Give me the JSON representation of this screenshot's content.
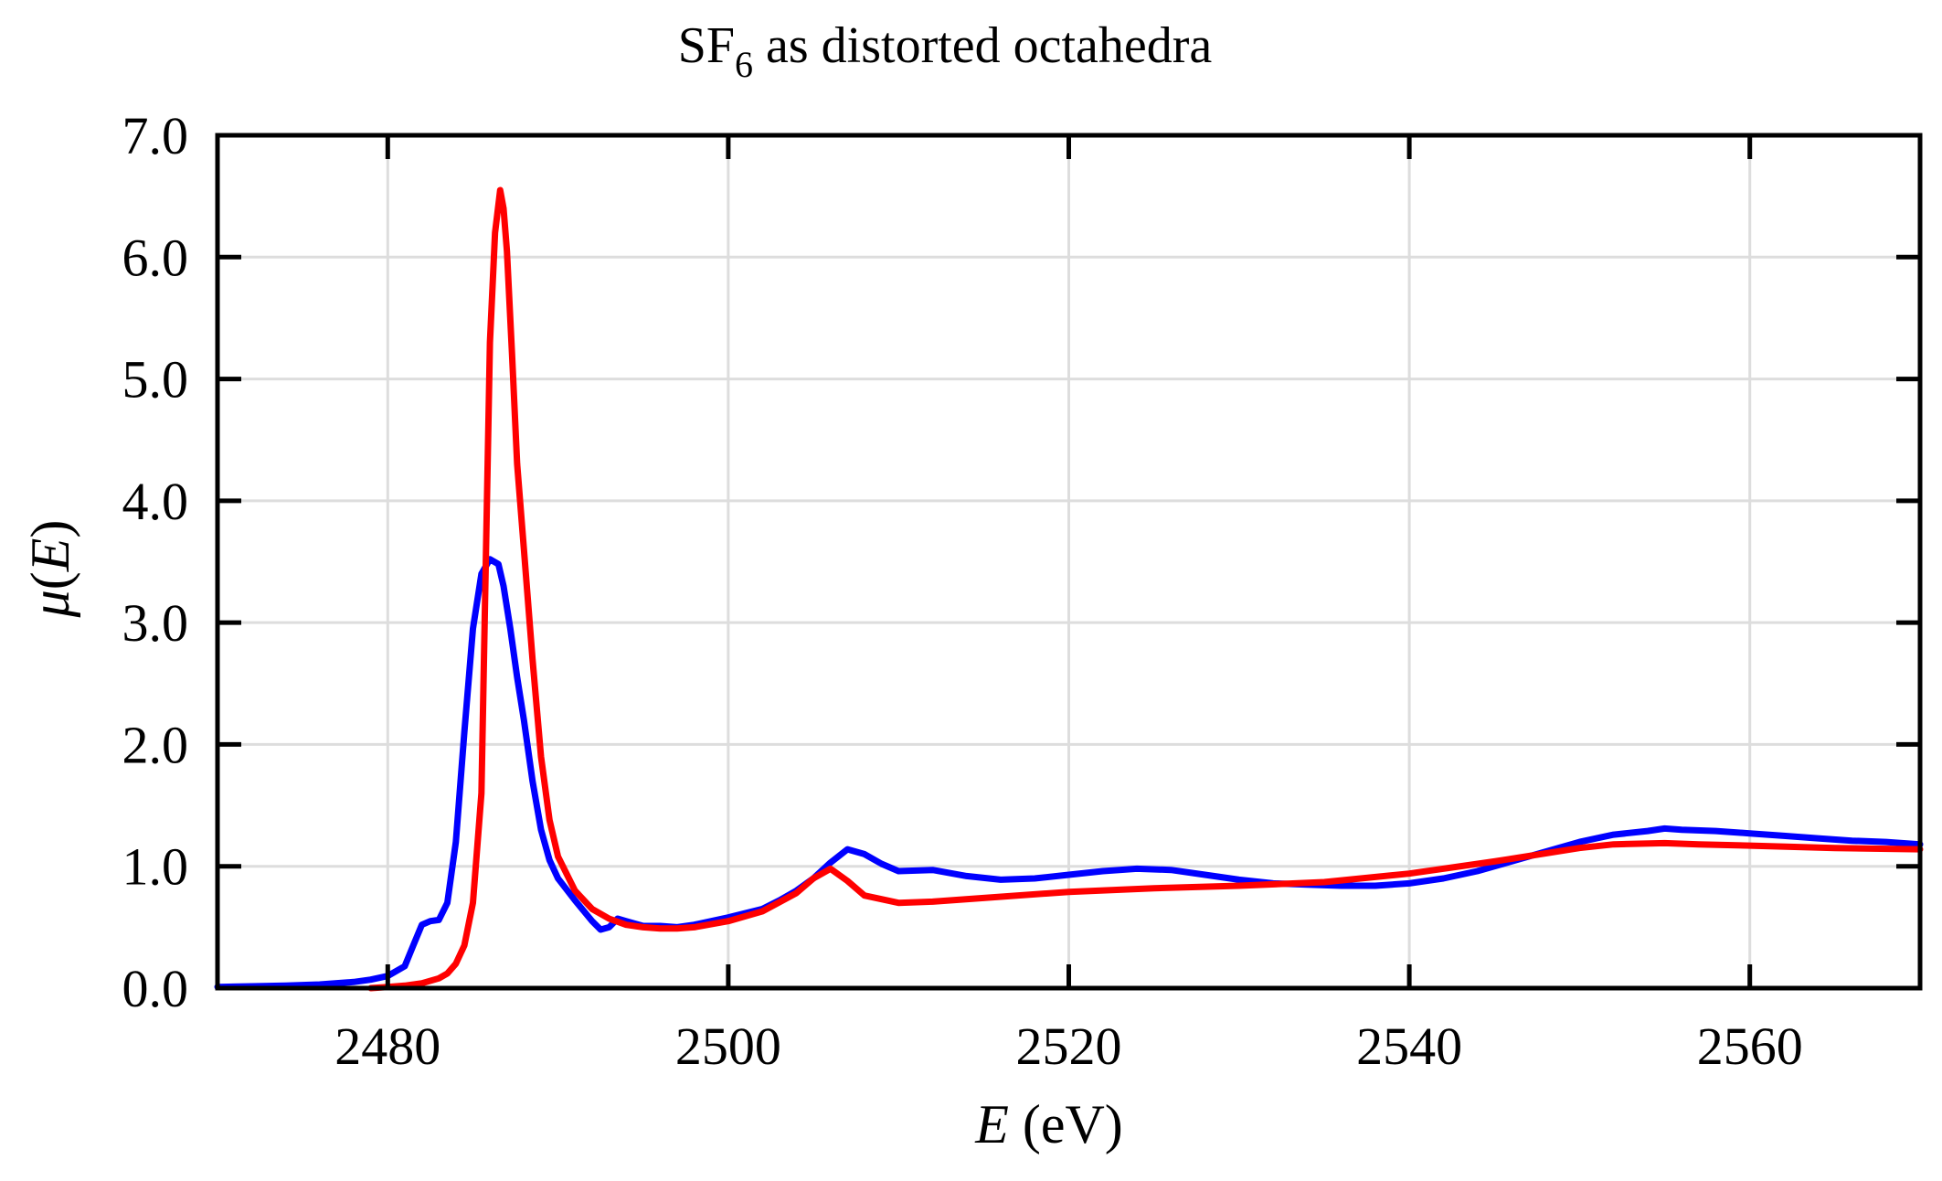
{
  "chart_data": {
    "type": "line",
    "title": {
      "main": "SF",
      "subscript": "6",
      "rest": " as distorted octahedra"
    },
    "xlabel": {
      "var": "E",
      "unit": " (eV)"
    },
    "ylabel": {
      "var_greek": "μ",
      "open": "(",
      "var": "E",
      "close": ")"
    },
    "xlim": [
      2470,
      2570
    ],
    "ylim": [
      0,
      7
    ],
    "xticks": [
      2480,
      2500,
      2520,
      2540,
      2560
    ],
    "yticks": [
      0,
      1,
      2,
      3,
      4,
      5,
      6,
      7
    ],
    "xtick_labels": [
      "2480",
      "2500",
      "2520",
      "2540",
      "2560"
    ],
    "ytick_labels": [
      "0.0",
      "1.0",
      "2.0",
      "3.0",
      "4.0",
      "5.0",
      "6.0",
      "7.0"
    ],
    "grid": true,
    "legend": "none",
    "series": [
      {
        "color": "#0000ff",
        "x": [
          2470,
          2472,
          2474,
          2476,
          2478,
          2479,
          2480,
          2481,
          2481.5,
          2482,
          2482.5,
          2483,
          2483.5,
          2484,
          2484.5,
          2485,
          2485.5,
          2486,
          2486.5,
          2486.8,
          2487.2,
          2487.6,
          2488,
          2488.5,
          2489,
          2489.5,
          2490,
          2491,
          2492,
          2492.5,
          2493,
          2493.5,
          2494,
          2495,
          2496,
          2497,
          2498,
          2500,
          2502,
          2503,
          2504,
          2505,
          2506,
          2507,
          2508,
          2509,
          2510,
          2512,
          2514,
          2516,
          2518,
          2520,
          2522,
          2524,
          2526,
          2528,
          2530,
          2532,
          2534,
          2536,
          2538,
          2540,
          2542,
          2544,
          2546,
          2548,
          2550,
          2552,
          2554,
          2555,
          2556,
          2558,
          2560,
          2562,
          2564,
          2566,
          2568,
          2570
        ],
        "y": [
          0.01,
          0.015,
          0.02,
          0.03,
          0.05,
          0.07,
          0.1,
          0.18,
          0.35,
          0.52,
          0.55,
          0.56,
          0.7,
          1.2,
          2.1,
          2.95,
          3.4,
          3.52,
          3.48,
          3.3,
          2.95,
          2.55,
          2.2,
          1.7,
          1.3,
          1.05,
          0.9,
          0.72,
          0.55,
          0.48,
          0.5,
          0.57,
          0.55,
          0.51,
          0.51,
          0.5,
          0.52,
          0.58,
          0.65,
          0.72,
          0.8,
          0.9,
          1.03,
          1.14,
          1.1,
          1.02,
          0.96,
          0.97,
          0.92,
          0.89,
          0.9,
          0.93,
          0.96,
          0.98,
          0.97,
          0.93,
          0.89,
          0.86,
          0.85,
          0.84,
          0.84,
          0.86,
          0.9,
          0.96,
          1.04,
          1.12,
          1.2,
          1.26,
          1.29,
          1.31,
          1.3,
          1.29,
          1.27,
          1.25,
          1.23,
          1.21,
          1.2,
          1.18
        ]
      },
      {
        "color": "#ff0000",
        "x": [
          2479,
          2480,
          2481,
          2482,
          2483,
          2483.5,
          2484,
          2484.5,
          2485,
          2485.5,
          2486,
          2486.3,
          2486.6,
          2486.8,
          2487,
          2487.3,
          2487.6,
          2488,
          2488.5,
          2489,
          2489.5,
          2490,
          2491,
          2492,
          2493,
          2494,
          2495,
          2496,
          2497,
          2498,
          2500,
          2502,
          2504,
          2505,
          2506,
          2507,
          2508,
          2510,
          2512,
          2515,
          2520,
          2525,
          2530,
          2535,
          2540,
          2545,
          2550,
          2552,
          2555,
          2557,
          2560,
          2565,
          2570
        ],
        "y": [
          0.0,
          0.01,
          0.02,
          0.04,
          0.08,
          0.12,
          0.2,
          0.35,
          0.7,
          1.6,
          5.3,
          6.2,
          6.55,
          6.4,
          6.05,
          5.2,
          4.3,
          3.6,
          2.7,
          1.9,
          1.38,
          1.08,
          0.8,
          0.65,
          0.57,
          0.52,
          0.5,
          0.49,
          0.49,
          0.5,
          0.55,
          0.63,
          0.78,
          0.9,
          0.98,
          0.88,
          0.76,
          0.7,
          0.71,
          0.74,
          0.79,
          0.82,
          0.84,
          0.87,
          0.94,
          1.04,
          1.15,
          1.18,
          1.19,
          1.18,
          1.17,
          1.15,
          1.14
        ]
      }
    ]
  }
}
